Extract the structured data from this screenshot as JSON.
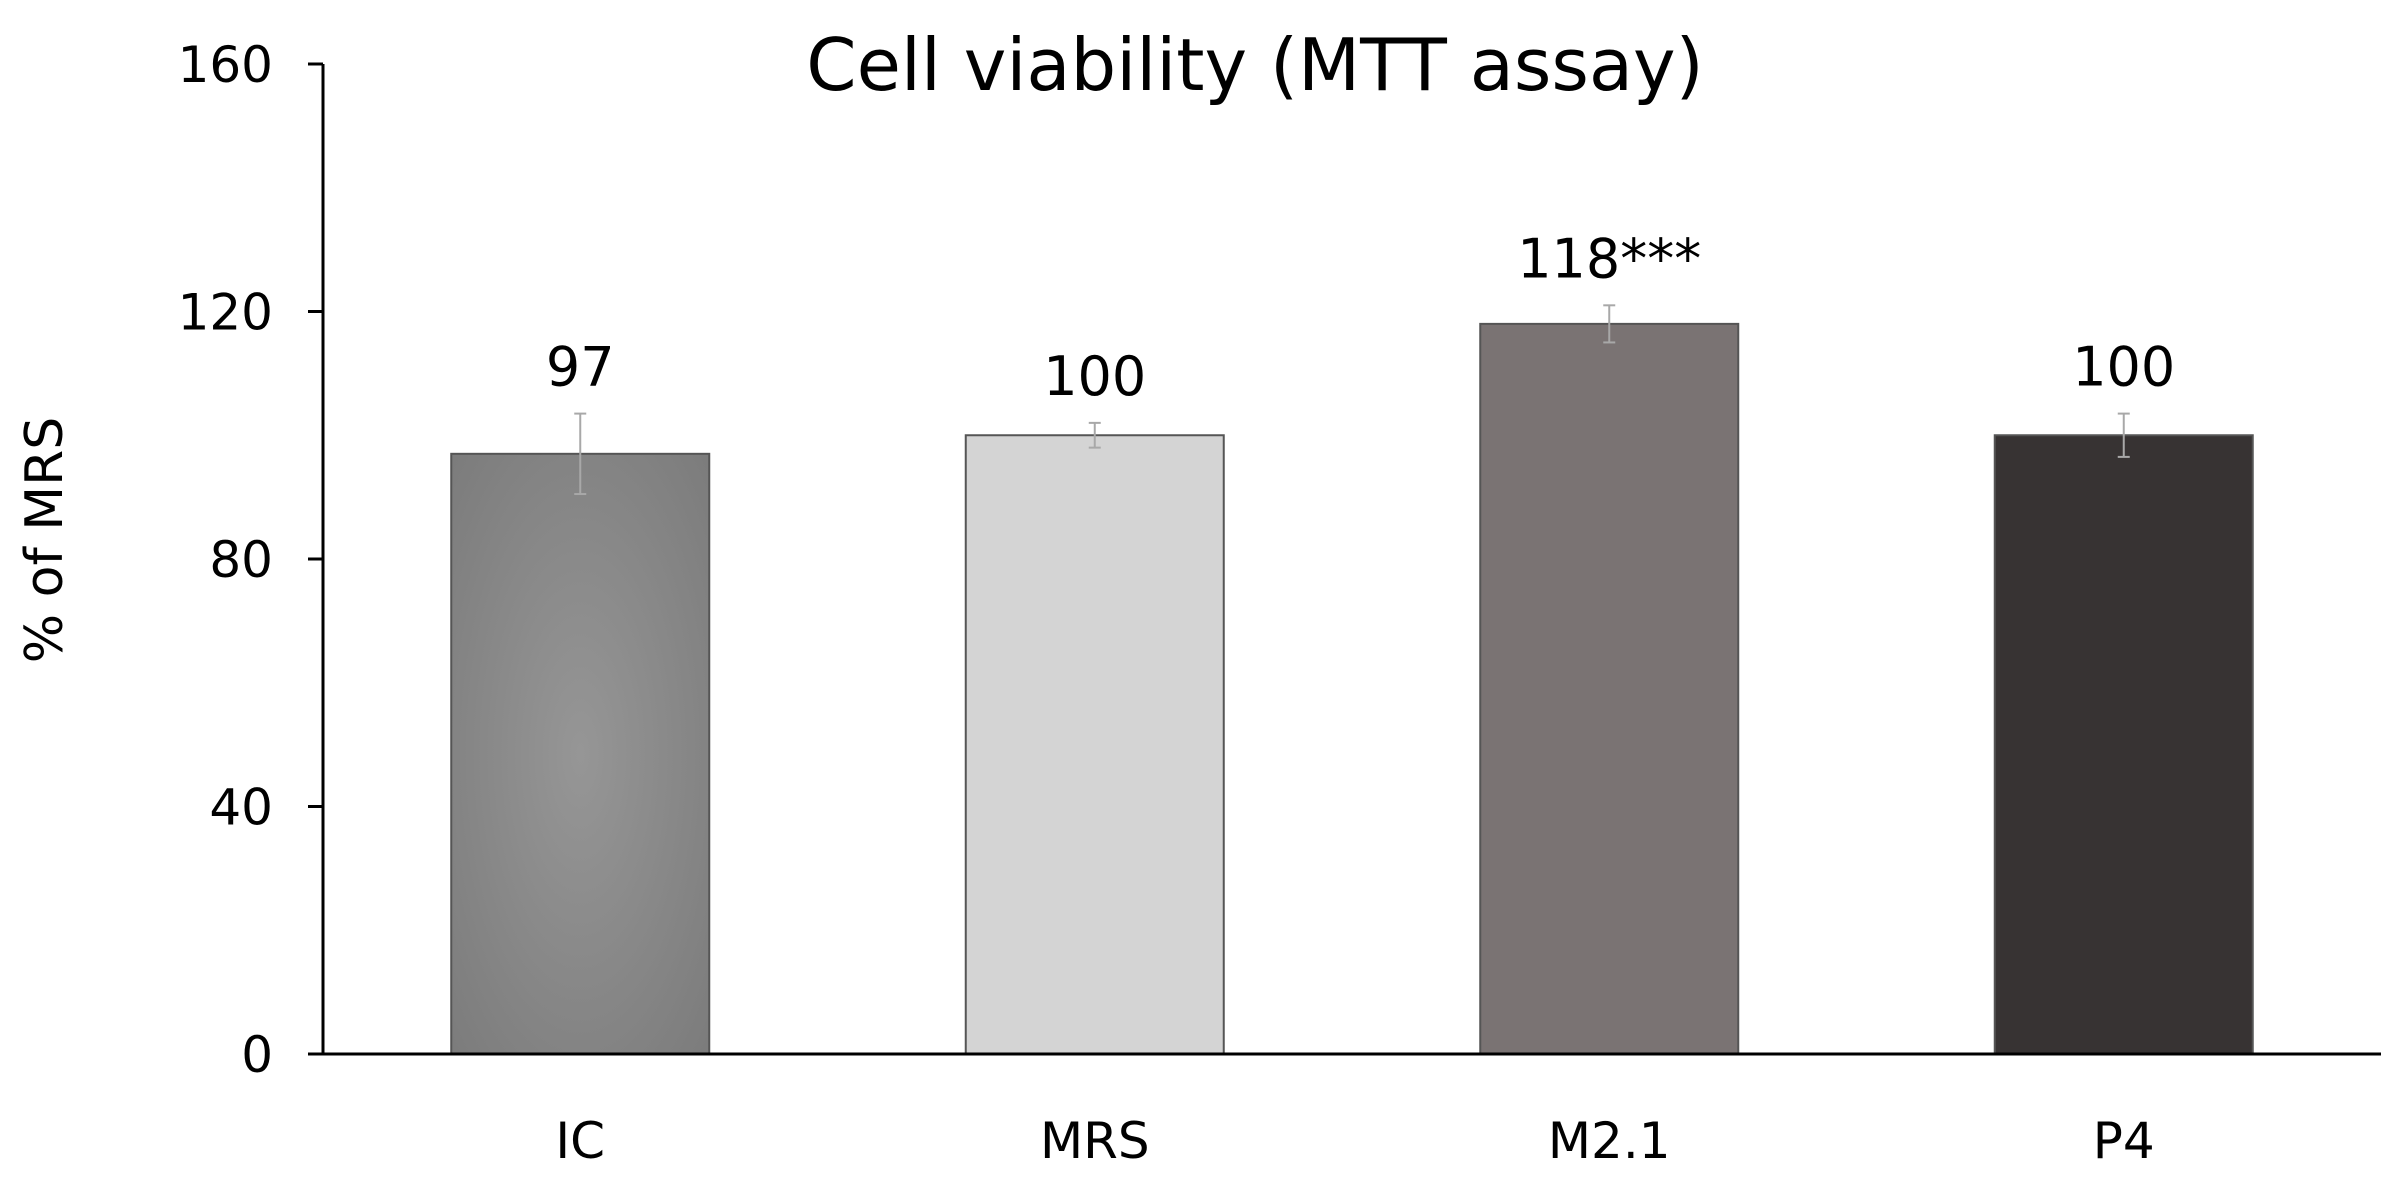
{
  "chart_data": {
    "type": "bar",
    "title": "Cell viability (MTT assay)",
    "xlabel": "",
    "ylabel": "% of MRS",
    "categories": [
      "IC",
      "MRS",
      "M2.1",
      "P4"
    ],
    "values": [
      97,
      100,
      118,
      100
    ],
    "error": [
      6.5,
      2,
      3,
      3.5
    ],
    "data_labels": [
      "97",
      "100",
      "118***",
      "100"
    ],
    "ylim": [
      0,
      160
    ],
    "yticks": [
      0,
      40,
      80,
      120,
      160
    ],
    "grid": false,
    "legend": "none",
    "bar_colors": [
      "#7a7a7a",
      "#d4d4d4",
      "#7a7373",
      "#373333"
    ],
    "ic_gradient_center": "#969696"
  }
}
